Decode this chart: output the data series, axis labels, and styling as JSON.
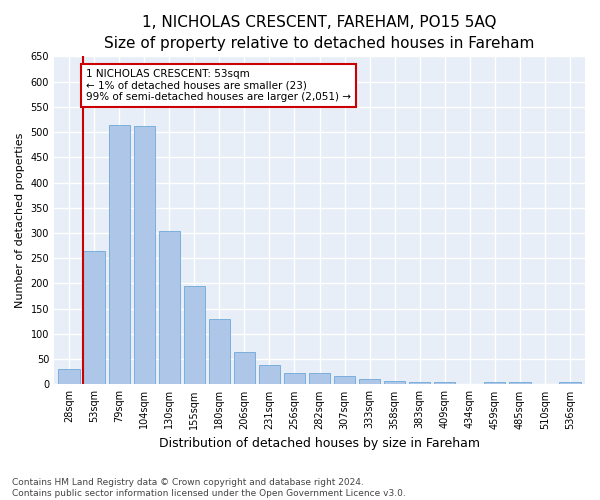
{
  "title": "1, NICHOLAS CRESCENT, FAREHAM, PO15 5AQ",
  "subtitle": "Size of property relative to detached houses in Fareham",
  "xlabel": "Distribution of detached houses by size in Fareham",
  "ylabel": "Number of detached properties",
  "categories": [
    "28sqm",
    "53sqm",
    "79sqm",
    "104sqm",
    "130sqm",
    "155sqm",
    "180sqm",
    "206sqm",
    "231sqm",
    "256sqm",
    "282sqm",
    "307sqm",
    "333sqm",
    "358sqm",
    "383sqm",
    "409sqm",
    "434sqm",
    "459sqm",
    "485sqm",
    "510sqm",
    "536sqm"
  ],
  "values": [
    31,
    265,
    513,
    511,
    303,
    195,
    130,
    65,
    38,
    23,
    22,
    16,
    10,
    7,
    5,
    5,
    0,
    5,
    5,
    0,
    5
  ],
  "bar_color": "#aec6e8",
  "bar_edge_color": "#5a9fd4",
  "highlight_index": 1,
  "highlight_line_color": "#cc0000",
  "annotation_text": "1 NICHOLAS CRESCENT: 53sqm\n← 1% of detached houses are smaller (23)\n99% of semi-detached houses are larger (2,051) →",
  "annotation_box_color": "#ffffff",
  "annotation_box_edge_color": "#cc0000",
  "ylim": [
    0,
    650
  ],
  "yticks": [
    0,
    50,
    100,
    150,
    200,
    250,
    300,
    350,
    400,
    450,
    500,
    550,
    600,
    650
  ],
  "background_color": "#e8eef7",
  "grid_color": "#ffffff",
  "fig_background_color": "#ffffff",
  "footer_text": "Contains HM Land Registry data © Crown copyright and database right 2024.\nContains public sector information licensed under the Open Government Licence v3.0.",
  "title_fontsize": 11,
  "subtitle_fontsize": 10,
  "xlabel_fontsize": 9,
  "ylabel_fontsize": 8,
  "tick_fontsize": 7,
  "annotation_fontsize": 7.5,
  "footer_fontsize": 6.5
}
